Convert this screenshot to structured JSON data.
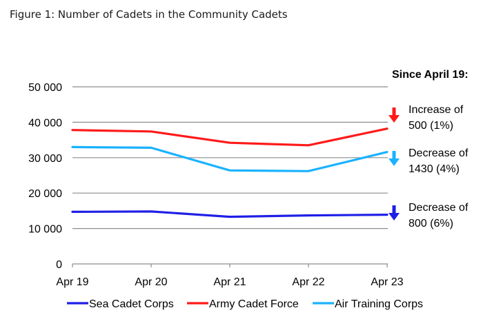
{
  "figure_title": "Figure 1: Number of Cadets in the Community Cadets",
  "chart_data": {
    "type": "line",
    "categories": [
      "Apr 19",
      "Apr 20",
      "Apr 21",
      "Apr 22",
      "Apr 23"
    ],
    "ylim": [
      0,
      50000
    ],
    "yticks": [
      0,
      10000,
      20000,
      30000,
      40000,
      50000
    ],
    "ytick_labels": [
      "0",
      "10 000",
      "20 000",
      "30 000",
      "40 000",
      "50 000"
    ],
    "grid": true,
    "legend_position": "bottom",
    "series": [
      {
        "name": "Sea Cadet Corps",
        "color": "#1f1fe6",
        "values": [
          14700,
          14800,
          13300,
          13700,
          13900
        ]
      },
      {
        "name": "Army Cadet Force",
        "color": "#ff1a1a",
        "values": [
          37800,
          37400,
          34200,
          33500,
          38200
        ]
      },
      {
        "name": "Air Training Corps",
        "color": "#1ab2ff",
        "values": [
          33000,
          32800,
          26400,
          26200,
          31600
        ]
      }
    ],
    "annotation_header": "Since April 19:",
    "annotations": [
      {
        "series": "Army Cadet Force",
        "direction": "down-arrow",
        "arrow_color": "#ff1a1a",
        "line1": "Increase of",
        "line2": "500 (1%)"
      },
      {
        "series": "Air Training Corps",
        "direction": "down-arrow",
        "arrow_color": "#1ab2ff",
        "line1": "Decrease of",
        "line2": "1430 (4%)"
      },
      {
        "series": "Sea Cadet Corps",
        "direction": "down-arrow",
        "arrow_color": "#1f1fe6",
        "line1": "Decrease of",
        "line2": "800 (6%)"
      }
    ]
  }
}
